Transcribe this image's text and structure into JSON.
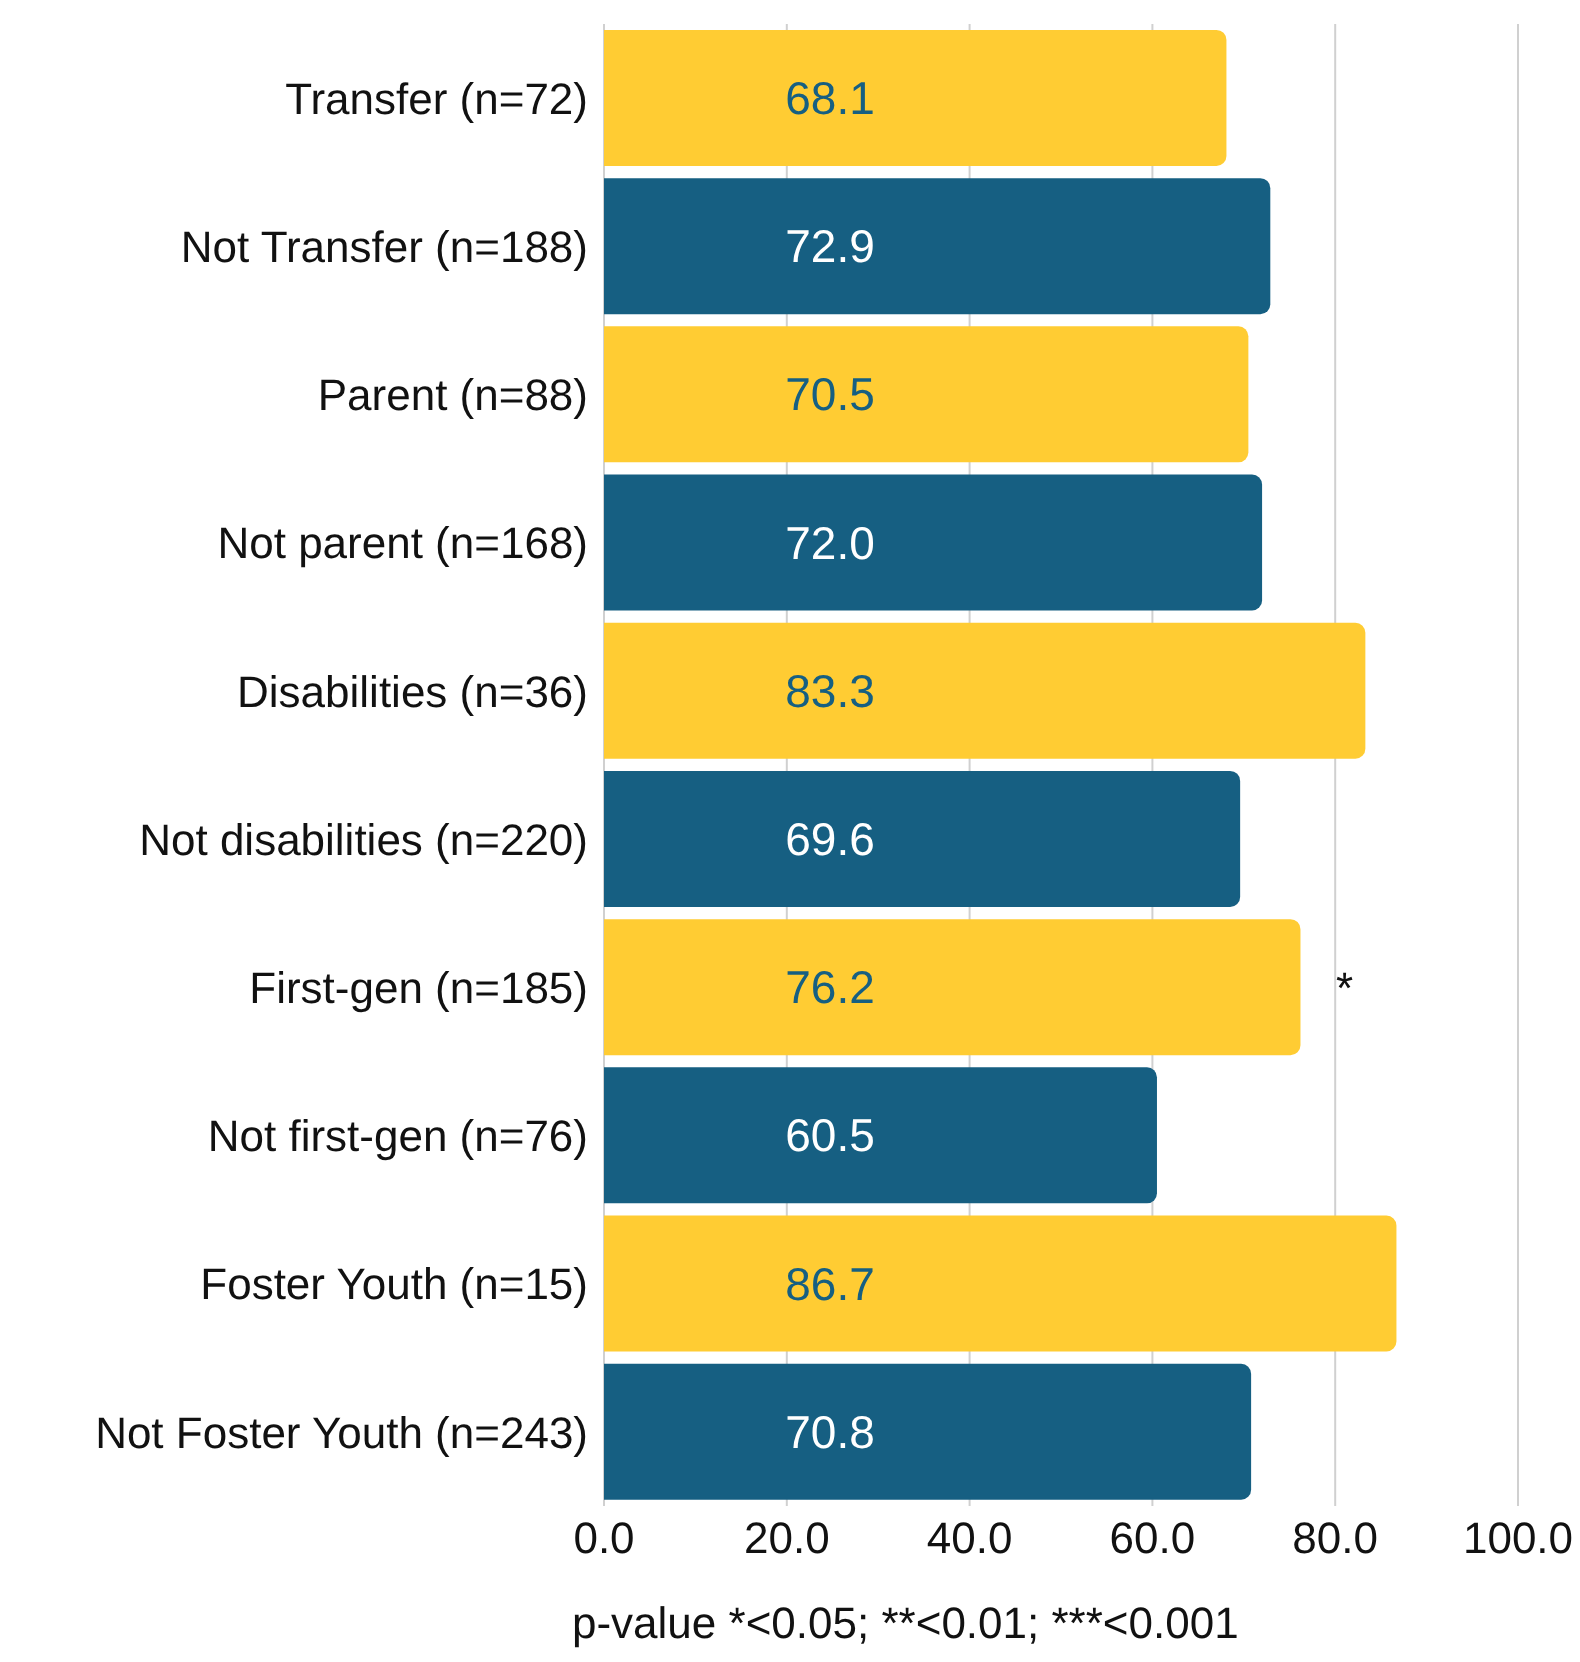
{
  "chart_data": {
    "type": "bar",
    "orientation": "horizontal",
    "categories": [
      "Transfer (n=72)",
      "Not Transfer (n=188)",
      "Parent (n=88)",
      "Not parent (n=168)",
      "Disabilities (n=36)",
      "Not disabilities (n=220)",
      "First-gen (n=185)",
      "Not first-gen (n=76)",
      "Foster Youth (n=15)",
      "Not Foster Youth (n=243)"
    ],
    "values": [
      68.1,
      72.9,
      70.5,
      72.0,
      83.3,
      69.6,
      76.2,
      60.5,
      86.7,
      70.8
    ],
    "value_labels": [
      "68.1",
      "72.9",
      "70.5",
      "72.0",
      "83.3",
      "69.6",
      "76.2",
      "60.5",
      "86.7",
      "70.8"
    ],
    "colors": [
      "#ffcc33",
      "#165f82",
      "#ffcc33",
      "#165f82",
      "#ffcc33",
      "#165f82",
      "#ffcc33",
      "#165f82",
      "#ffcc33",
      "#165f82"
    ],
    "xlim": [
      0,
      100
    ],
    "xticks": [
      {
        "value": 0,
        "label": "0.0"
      },
      {
        "value": 20,
        "label": "20.0"
      },
      {
        "value": 40,
        "label": "40.0"
      },
      {
        "value": 60,
        "label": "60.0"
      },
      {
        "value": 80,
        "label": "80.0"
      },
      {
        "value": 100,
        "label": "100.0"
      }
    ],
    "grid": "x",
    "legend": false,
    "annotations": [
      {
        "text": "*",
        "x": 76.2,
        "y": "First-gen (n=185)"
      },
      "p-value *<0.05; **<0.01; ***<0.001"
    ]
  }
}
